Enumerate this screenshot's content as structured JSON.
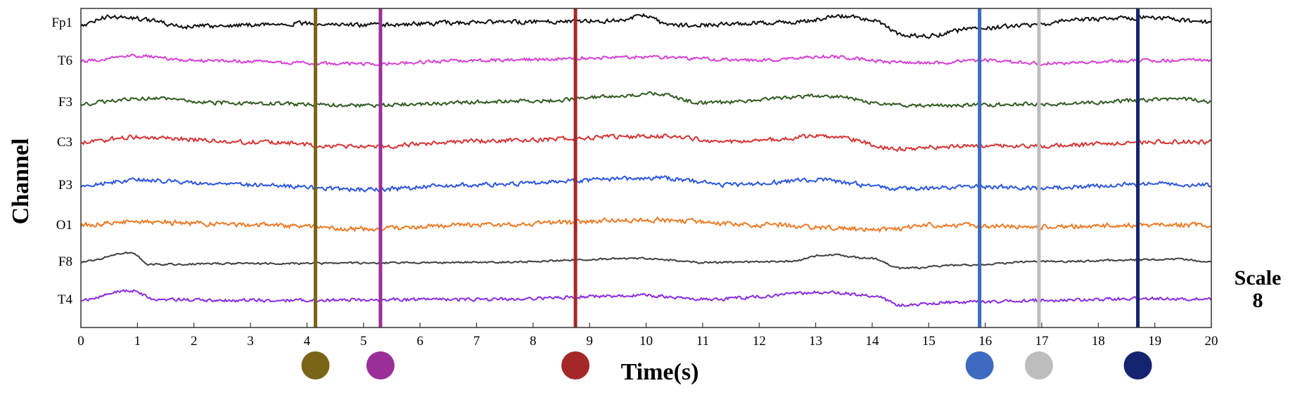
{
  "chart_data": {
    "type": "line",
    "xlabel": "Time(s)",
    "ylabel": "Channel",
    "xlim": [
      0,
      20
    ],
    "xticks": [
      0,
      1,
      2,
      3,
      4,
      5,
      6,
      7,
      8,
      9,
      10,
      11,
      12,
      13,
      14,
      15,
      16,
      17,
      18,
      19,
      20
    ],
    "grid": false,
    "scale_label": "Scale",
    "scale_value": "8",
    "channels": [
      {
        "name": "Fp1",
        "color": "#111111",
        "noise": 0.9,
        "events": [
          [
            0,
            0.3
          ],
          [
            0.5,
            -0.6
          ],
          [
            1.0,
            -0.4
          ],
          [
            1.8,
            0.4
          ],
          [
            4.0,
            0.1
          ],
          [
            5.0,
            0.25
          ],
          [
            7.0,
            0.0
          ],
          [
            9.5,
            -0.2
          ],
          [
            10.0,
            -0.7
          ],
          [
            10.4,
            0.3
          ],
          [
            12.5,
            0.0
          ],
          [
            13.5,
            -0.6
          ],
          [
            14.0,
            -0.3
          ],
          [
            14.5,
            1.2
          ],
          [
            15.0,
            1.35
          ],
          [
            15.8,
            0.6
          ],
          [
            17.0,
            0.2
          ],
          [
            17.5,
            -0.3
          ],
          [
            19.0,
            -0.5
          ],
          [
            20,
            0.0
          ]
        ]
      },
      {
        "name": "T6",
        "color": "#d63fd6",
        "noise": 0.7,
        "events": [
          [
            0,
            0.1
          ],
          [
            0.9,
            -0.5
          ],
          [
            2.0,
            0.0
          ],
          [
            5.0,
            0.35
          ],
          [
            7.0,
            0.0
          ],
          [
            10.0,
            -0.35
          ],
          [
            12.0,
            0.0
          ],
          [
            13.2,
            -0.4
          ],
          [
            14.5,
            0.2
          ],
          [
            15.0,
            0.3
          ],
          [
            16.0,
            0.0
          ],
          [
            17.0,
            0.3
          ],
          [
            19.0,
            0.0
          ],
          [
            20,
            0.0
          ]
        ]
      },
      {
        "name": "F3",
        "color": "#2f5a1f",
        "noise": 0.8,
        "events": [
          [
            0,
            0.2
          ],
          [
            1.0,
            -0.4
          ],
          [
            2.5,
            0.1
          ],
          [
            5.0,
            0.35
          ],
          [
            8.0,
            -0.1
          ],
          [
            10.2,
            -0.8
          ],
          [
            11.0,
            0.1
          ],
          [
            13.2,
            -0.6
          ],
          [
            14.5,
            0.35
          ],
          [
            15.5,
            0.35
          ],
          [
            17.0,
            0.2
          ],
          [
            19.5,
            -0.3
          ],
          [
            20,
            0.0
          ]
        ]
      },
      {
        "name": "C3",
        "color": "#d63333",
        "noise": 0.9,
        "events": [
          [
            0,
            0.0
          ],
          [
            1.0,
            -0.5
          ],
          [
            3.0,
            0.0
          ],
          [
            5.0,
            0.5
          ],
          [
            7.0,
            -0.1
          ],
          [
            10.2,
            -0.6
          ],
          [
            11.5,
            0.0
          ],
          [
            13.2,
            -0.6
          ],
          [
            14.5,
            0.7
          ],
          [
            15.5,
            0.4
          ],
          [
            17.0,
            0.4
          ],
          [
            19.0,
            0.0
          ],
          [
            20,
            0.0
          ]
        ]
      },
      {
        "name": "P3",
        "color": "#2a55e0",
        "noise": 0.9,
        "events": [
          [
            0,
            0.1
          ],
          [
            1.0,
            -0.5
          ],
          [
            3.0,
            0.0
          ],
          [
            5.0,
            0.5
          ],
          [
            7.0,
            0.0
          ],
          [
            10.2,
            -0.7
          ],
          [
            11.5,
            0.0
          ],
          [
            13.0,
            -0.5
          ],
          [
            14.5,
            0.4
          ],
          [
            16.0,
            0.2
          ],
          [
            17.0,
            0.3
          ],
          [
            19.0,
            -0.1
          ],
          [
            20,
            0.0
          ]
        ]
      },
      {
        "name": "O1",
        "color": "#ec7a24",
        "noise": 1.0,
        "events": [
          [
            0,
            0.0
          ],
          [
            1.0,
            -0.3
          ],
          [
            3.0,
            0.0
          ],
          [
            5.0,
            0.4
          ],
          [
            7.0,
            0.0
          ],
          [
            10.2,
            -0.5
          ],
          [
            12.0,
            0.0
          ],
          [
            14.3,
            0.5
          ],
          [
            15.0,
            0.0
          ],
          [
            17.0,
            0.2
          ],
          [
            19.0,
            0.0
          ],
          [
            20,
            0.0
          ]
        ]
      },
      {
        "name": "F8",
        "color": "#404040",
        "noise": 0.4,
        "events": [
          [
            0,
            0.0
          ],
          [
            0.9,
            -0.9
          ],
          [
            1.2,
            0.3
          ],
          [
            3.0,
            0.2
          ],
          [
            7.0,
            0.1
          ],
          [
            10.0,
            -0.3
          ],
          [
            11.0,
            0.1
          ],
          [
            12.5,
            0.0
          ],
          [
            13.2,
            -0.7
          ],
          [
            14.0,
            -0.3
          ],
          [
            14.5,
            0.7
          ],
          [
            15.5,
            0.4
          ],
          [
            17.0,
            0.0
          ],
          [
            19.5,
            -0.2
          ],
          [
            20,
            0.0
          ]
        ]
      },
      {
        "name": "T4",
        "color": "#8a2be2",
        "noise": 0.7,
        "events": [
          [
            0,
            0.0
          ],
          [
            0.9,
            -0.9
          ],
          [
            1.3,
            0.0
          ],
          [
            3.0,
            0.1
          ],
          [
            7.0,
            0.0
          ],
          [
            10.0,
            -0.4
          ],
          [
            11.0,
            0.0
          ],
          [
            13.3,
            -0.7
          ],
          [
            14.0,
            -0.4
          ],
          [
            14.5,
            0.6
          ],
          [
            15.5,
            0.3
          ],
          [
            17.0,
            0.1
          ],
          [
            19.0,
            -0.1
          ],
          [
            20,
            0.0
          ]
        ]
      }
    ],
    "markers": [
      {
        "time": 4.15,
        "color": "#7a6418"
      },
      {
        "time": 5.3,
        "color": "#9a2f9a"
      },
      {
        "time": 8.75,
        "color": "#a52828"
      },
      {
        "time": 15.9,
        "color": "#3e6bc1"
      },
      {
        "time": 16.95,
        "color": "#bdbdbd"
      },
      {
        "time": 18.7,
        "color": "#142470"
      }
    ]
  }
}
